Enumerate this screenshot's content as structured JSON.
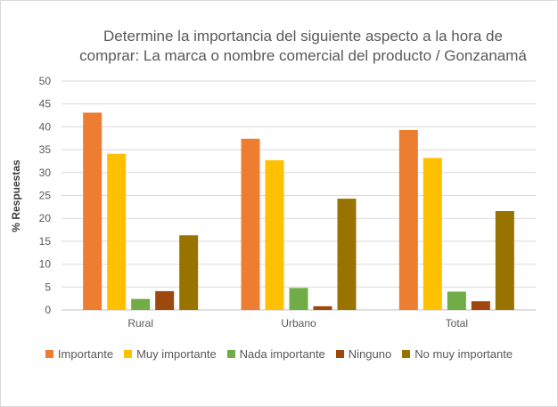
{
  "chart_data": {
    "type": "bar",
    "title_lines": [
      "Determine la importancia del siguiente aspecto a la hora de",
      "comprar: La marca o nombre comercial del producto / Gonzanamá"
    ],
    "xlabel": "",
    "ylabel": "% Respuestas",
    "ylim": [
      0,
      50
    ],
    "yticks": [
      0,
      5,
      10,
      15,
      20,
      25,
      30,
      35,
      40,
      45,
      50
    ],
    "grid": true,
    "legend_position": "bottom",
    "categories": [
      "Rural",
      "Urbano",
      "Total"
    ],
    "series": [
      {
        "name": "Importante",
        "color": "#ED7D31",
        "values": [
          43.1,
          37.4,
          39.3
        ]
      },
      {
        "name": "Muy importante",
        "color": "#FFC000",
        "values": [
          34.1,
          32.7,
          33.2
        ]
      },
      {
        "name": "Nada importante",
        "color": "#70AD47",
        "values": [
          2.4,
          4.8,
          4.0
        ]
      },
      {
        "name": "Ninguno",
        "color": "#9E480E",
        "values": [
          4.1,
          0.8,
          1.9
        ]
      },
      {
        "name": "No muy importante",
        "color": "#997300",
        "values": [
          16.3,
          24.3,
          21.6
        ]
      }
    ]
  }
}
